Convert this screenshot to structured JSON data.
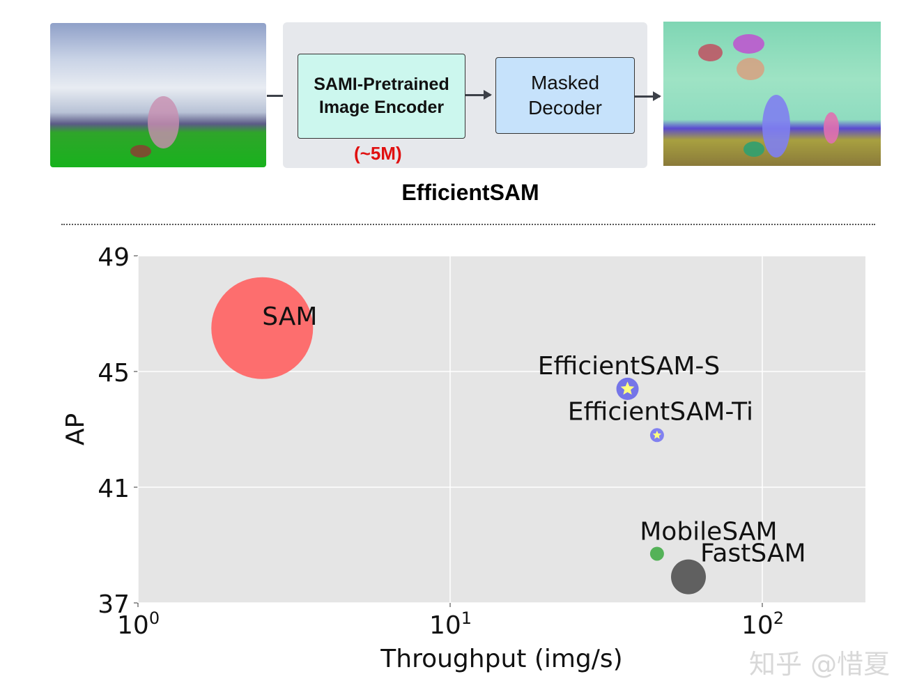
{
  "diagram": {
    "encoder_label_line1": "SAMI-Pretrained",
    "encoder_label_line2": "Image Encoder",
    "encoder_params": "(~5M)",
    "decoder_label_line1": "Masked",
    "decoder_label_line2": "Decoder",
    "title": "EfficientSAM"
  },
  "chart_data": {
    "type": "scatter",
    "xlabel": "Throughput (img/s)",
    "ylabel": "AP",
    "x_scale": "log",
    "xlim": [
      1,
      214
    ],
    "ylim": [
      37,
      49
    ],
    "x_ticks": [
      {
        "value": 1,
        "base": "10",
        "exp": "0"
      },
      {
        "value": 10,
        "base": "10",
        "exp": "1"
      },
      {
        "value": 100,
        "base": "10",
        "exp": "2"
      }
    ],
    "y_ticks": [
      "37",
      "41",
      "45",
      "49"
    ],
    "grid": true,
    "background": "#e5e5e5",
    "points": [
      {
        "label": "SAM",
        "x": 2.5,
        "y": 46.5,
        "size": "large",
        "color": "#ff6060",
        "marker": "circle"
      },
      {
        "label": "EfficientSAM-S",
        "x": 37,
        "y": 44.4,
        "size": "small",
        "color": "#6f6fe8",
        "marker": "circle-star"
      },
      {
        "label": "EfficientSAM-Ti",
        "x": 46,
        "y": 42.8,
        "size": "tiny",
        "color": "#7b7bf0",
        "marker": "circle-star"
      },
      {
        "label": "MobileSAM",
        "x": 46,
        "y": 38.7,
        "size": "tiny",
        "color": "#4caf50",
        "marker": "circle"
      },
      {
        "label": "FastSAM",
        "x": 58,
        "y": 37.9,
        "size": "medium",
        "color": "#595959",
        "marker": "circle"
      }
    ]
  },
  "watermark": "知乎 @惜夏"
}
